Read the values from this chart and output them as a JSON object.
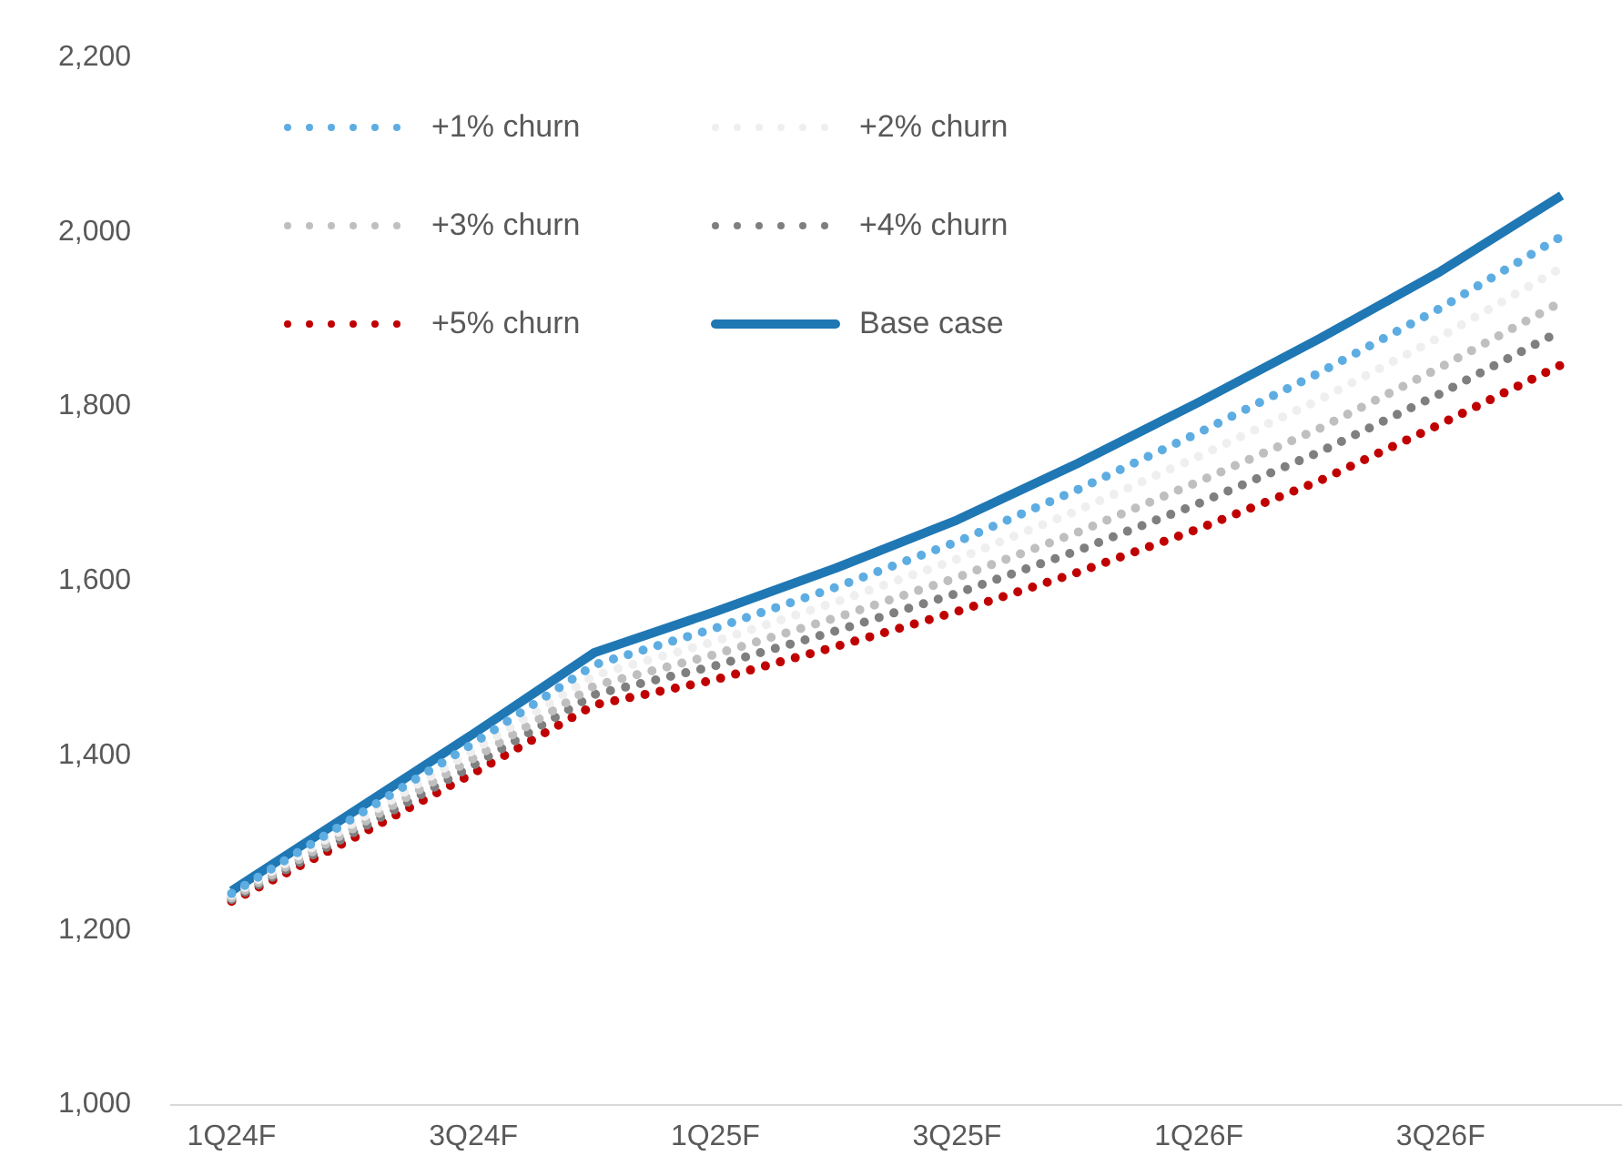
{
  "chart_data": {
    "type": "line",
    "categories": [
      "1Q24F",
      null,
      "3Q24F",
      null,
      "1Q25F",
      null,
      "3Q25F",
      null,
      "1Q26F",
      null,
      "3Q26F",
      null
    ],
    "series": [
      {
        "name": "+1% churn",
        "color": "#5dade2",
        "line_style": "dotted",
        "values": [
          1242,
          1328,
          1414,
          1504,
          1546,
          1593,
          1645,
          1705,
          1770,
          1839,
          1913,
          1995
        ]
      },
      {
        "name": "+2% churn",
        "color": "#efefef",
        "line_style": "dotted",
        "values": [
          1240,
          1322,
          1406,
          1492,
          1531,
          1576,
          1625,
          1681,
          1743,
          1808,
          1880,
          1959
        ]
      },
      {
        "name": "+3% churn",
        "color": "#bfbfbf",
        "line_style": "dotted",
        "values": [
          1237,
          1316,
          1397,
          1480,
          1516,
          1558,
          1604,
          1656,
          1714,
          1775,
          1845,
          1920
        ]
      },
      {
        "name": "+4% churn",
        "color": "#7f7f7f",
        "line_style": "dotted",
        "values": [
          1235,
          1311,
          1389,
          1470,
          1503,
          1543,
          1586,
          1635,
          1689,
          1748,
          1815,
          1887
        ]
      },
      {
        "name": "+5% churn",
        "color": "#c00000",
        "line_style": "dotted",
        "values": [
          1233,
          1305,
          1380,
          1458,
          1487,
          1525,
          1565,
          1610,
          1660,
          1715,
          1780,
          1848
        ]
      },
      {
        "name": "Base case",
        "color": "#1f77b4",
        "line_style": "solid",
        "values": [
          1245,
          1335,
          1425,
          1518,
          1565,
          1615,
          1670,
          1735,
          1805,
          1878,
          1955,
          2042
        ]
      }
    ],
    "ylim": [
      1000,
      2200
    ],
    "yticks": [
      {
        "value": 1000,
        "label": "1,000"
      },
      {
        "value": 1200,
        "label": "1,200"
      },
      {
        "value": 1400,
        "label": "1,400"
      },
      {
        "value": 1600,
        "label": "1,600"
      },
      {
        "value": 1800,
        "label": "1,800"
      },
      {
        "value": 2000,
        "label": "2,000"
      },
      {
        "value": 2200,
        "label": "2,200"
      }
    ],
    "grid": false,
    "legend": "top left",
    "marker": "none"
  }
}
